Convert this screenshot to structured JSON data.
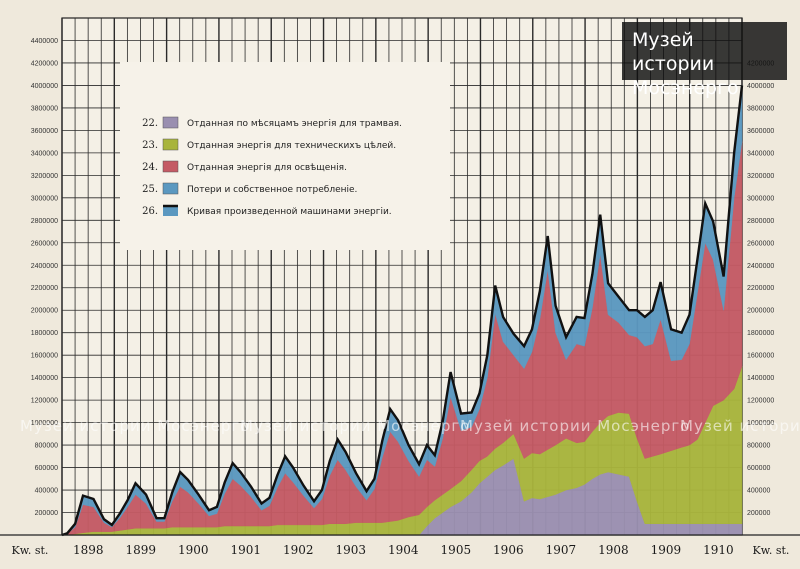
{
  "chart_data": {
    "type": "area",
    "unit_label": "Kw. st.",
    "y_ticks": [
      200000,
      400000,
      600000,
      800000,
      1000000,
      1200000,
      1400000,
      1600000,
      1800000,
      2000000,
      2200000,
      2400000,
      2600000,
      2800000,
      3000000,
      3200000,
      3400000,
      3600000,
      3800000,
      4000000,
      4200000,
      4400000
    ],
    "right_y_ticks": [
      200000,
      400000,
      600000,
      800000,
      1000000,
      1200000,
      1400000,
      1600000,
      1800000,
      2000000,
      2200000,
      2400000,
      2600000,
      2800000,
      3000000,
      3200000,
      3400000,
      3600000,
      3800000,
      4000000,
      4200000
    ],
    "ylim": [
      0,
      4600000
    ],
    "years": [
      "1898",
      "1899",
      "1900",
      "1901",
      "1902",
      "1903",
      "1904",
      "1905",
      "1906",
      "1907",
      "1908",
      "1909",
      "1910"
    ],
    "x": [
      1898.0,
      1898.1,
      1898.25,
      1898.4,
      1898.6,
      1898.8,
      1898.95,
      1899.1,
      1899.25,
      1899.4,
      1899.6,
      1899.8,
      1899.95,
      1900.1,
      1900.25,
      1900.4,
      1900.6,
      1900.8,
      1900.95,
      1901.1,
      1901.25,
      1901.4,
      1901.6,
      1901.8,
      1901.95,
      1902.1,
      1902.25,
      1902.4,
      1902.6,
      1902.8,
      1902.95,
      1903.1,
      1903.25,
      1903.4,
      1903.6,
      1903.8,
      1903.95,
      1904.1,
      1904.25,
      1904.4,
      1904.6,
      1904.8,
      1904.95,
      1905.1,
      1905.25,
      1905.4,
      1905.6,
      1905.8,
      1905.95,
      1906.1,
      1906.25,
      1906.4,
      1906.6,
      1906.8,
      1906.95,
      1907.1,
      1907.25,
      1907.4,
      1907.6,
      1907.8,
      1907.95,
      1908.1,
      1908.25,
      1908.4,
      1908.6,
      1908.8,
      1908.95,
      1909.1,
      1909.25,
      1909.4,
      1909.6,
      1909.8,
      1909.95,
      1910.1,
      1910.25,
      1910.4,
      1910.6,
      1910.8,
      1910.95
    ],
    "series": [
      {
        "name": "Отданная по мѣсяцамъ энергія для трамвая.",
        "color": "#9a8fb0",
        "values": [
          0,
          0,
          0,
          0,
          0,
          0,
          0,
          0,
          0,
          0,
          0,
          0,
          0,
          0,
          0,
          0,
          0,
          0,
          0,
          0,
          0,
          0,
          0,
          0,
          0,
          0,
          0,
          0,
          0,
          0,
          0,
          0,
          0,
          0,
          0,
          0,
          0,
          0,
          0,
          0,
          0,
          0,
          80000,
          150000,
          200000,
          250000,
          300000,
          380000,
          460000,
          520000,
          580000,
          620000,
          680000,
          300000,
          330000,
          320000,
          340000,
          360000,
          400000,
          420000,
          450000,
          500000,
          540000,
          560000,
          540000,
          520000,
          300000,
          100000,
          100000,
          100000,
          100000,
          100000,
          100000,
          100000,
          100000,
          100000,
          100000,
          100000,
          100000
        ]
      },
      {
        "name": "Отданная энергія для техническихъ цѣлей.",
        "color": "#a8b43c",
        "values": [
          0,
          0,
          10000,
          20000,
          30000,
          30000,
          30000,
          40000,
          50000,
          60000,
          60000,
          60000,
          60000,
          70000,
          70000,
          70000,
          70000,
          70000,
          70000,
          80000,
          80000,
          80000,
          80000,
          80000,
          80000,
          90000,
          90000,
          90000,
          90000,
          90000,
          90000,
          100000,
          100000,
          100000,
          110000,
          110000,
          110000,
          110000,
          120000,
          130000,
          160000,
          180000,
          170000,
          160000,
          160000,
          160000,
          180000,
          200000,
          200000,
          180000,
          190000,
          200000,
          220000,
          380000,
          400000,
          400000,
          420000,
          440000,
          460000,
          400000,
          380000,
          420000,
          460000,
          500000,
          550000,
          560000,
          560000,
          580000,
          600000,
          620000,
          650000,
          680000,
          700000,
          750000,
          900000,
          1050000,
          1100000,
          1200000,
          1400000
        ]
      },
      {
        "name": "Отданная энергія для освѣщенія.",
        "color": "#c45a64",
        "values": [
          0,
          10000,
          60000,
          250000,
          220000,
          80000,
          40000,
          110000,
          200000,
          300000,
          220000,
          60000,
          60000,
          230000,
          360000,
          310000,
          210000,
          100000,
          120000,
          290000,
          420000,
          360000,
          260000,
          140000,
          180000,
          330000,
          460000,
          380000,
          260000,
          150000,
          230000,
          430000,
          570000,
          480000,
          320000,
          200000,
          300000,
          580000,
          800000,
          700000,
          500000,
          340000,
          420000,
          300000,
          500000,
          820000,
          450000,
          380000,
          460000,
          700000,
          1200000,
          900000,
          700000,
          800000,
          900000,
          1200000,
          1600000,
          1000000,
          700000,
          880000,
          850000,
          1100000,
          1500000,
          900000,
          800000,
          700000,
          900000,
          1000000,
          1000000,
          1200000,
          800000,
          780000,
          900000,
          1300000,
          1600000,
          1300000,
          800000,
          1700000,
          2000000
        ]
      },
      {
        "name": "Потери и собственное потребленіе.",
        "color": "#5b98c0",
        "values": [
          0,
          5000,
          30000,
          80000,
          70000,
          30000,
          20000,
          40000,
          60000,
          100000,
          80000,
          30000,
          30000,
          80000,
          130000,
          110000,
          80000,
          50000,
          60000,
          100000,
          140000,
          120000,
          90000,
          60000,
          70000,
          110000,
          150000,
          130000,
          90000,
          60000,
          80000,
          130000,
          180000,
          160000,
          120000,
          80000,
          90000,
          150000,
          200000,
          190000,
          140000,
          110000,
          130000,
          100000,
          150000,
          220000,
          150000,
          130000,
          140000,
          200000,
          250000,
          220000,
          190000,
          200000,
          200000,
          250000,
          300000,
          240000,
          200000,
          240000,
          250000,
          300000,
          350000,
          280000,
          230000,
          220000,
          240000,
          260000,
          300000,
          330000,
          280000,
          240000,
          260000,
          300000,
          350000,
          340000,
          300000,
          400000,
          500000
        ]
      }
    ]
  },
  "legend": [
    {
      "num": "22.",
      "label": "Отданная по мѣсяцамъ энергія для трамвая.",
      "color": "#9a8fb0"
    },
    {
      "num": "23.",
      "label": "Отданная энергія для техническихъ цѣлей.",
      "color": "#a8b43c"
    },
    {
      "num": "24.",
      "label": "Отданная энергія для освѣщенія.",
      "color": "#c45a64"
    },
    {
      "num": "25.",
      "label": "Потери и собственное потребленіе.",
      "color": "#5b98c0"
    },
    {
      "num": "26.",
      "label": "Кривая произведенной машинами энергіи.",
      "color": "#111111"
    }
  ],
  "logo": {
    "line1": "Музей истории",
    "line2": "Мосэнерго"
  },
  "watermark": "Музей истории Мосэнерго"
}
